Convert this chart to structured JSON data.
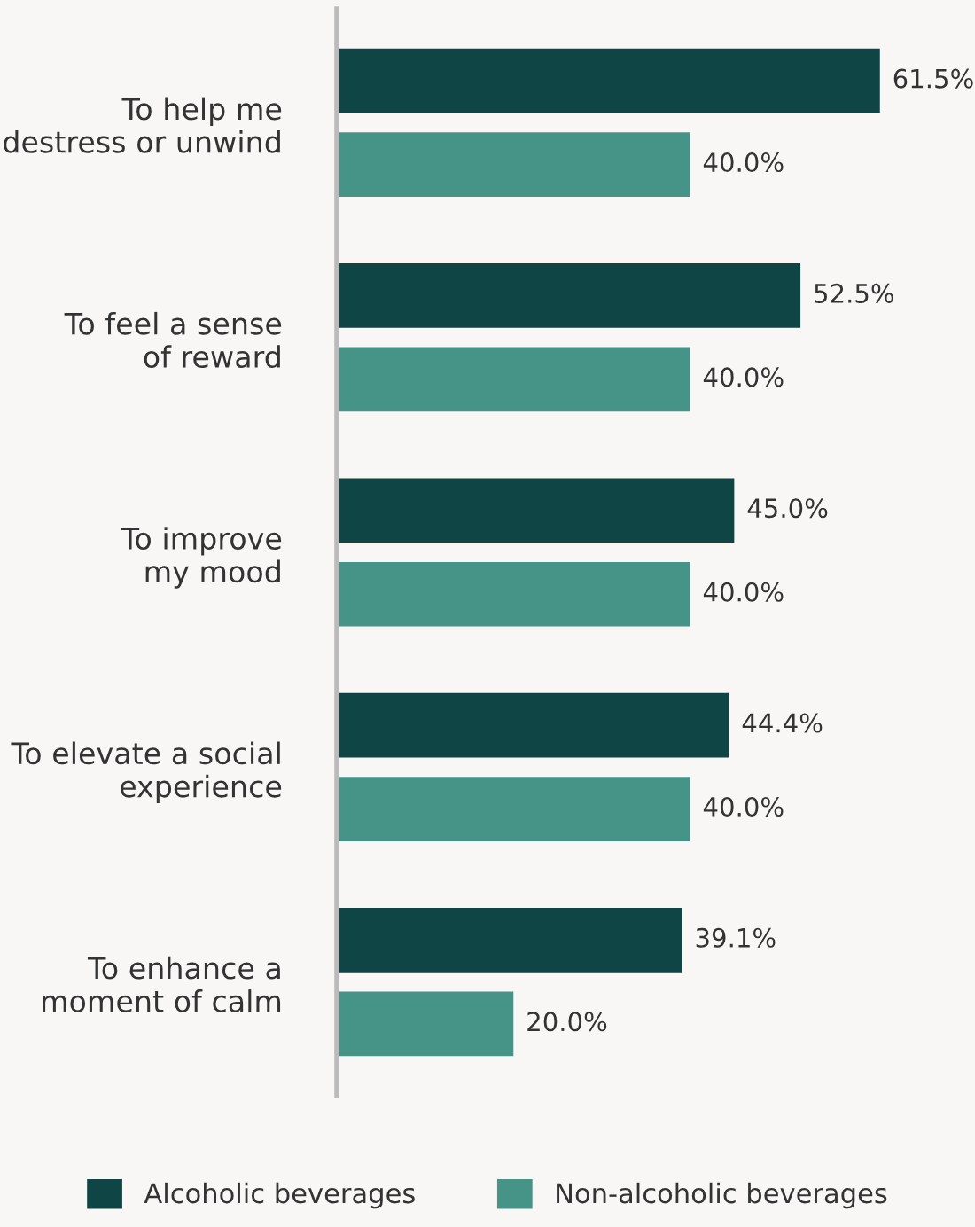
{
  "chart_data": {
    "type": "bar",
    "orientation": "horizontal",
    "legend": "bottom",
    "categories": [
      "To help me\ndestress or unwind",
      "To feel a sense\nof reward",
      "To improve\nmy mood",
      "To elevate a social\nexperience",
      "To enhance a\nmoment of calm"
    ],
    "series": [
      {
        "name": "Alcoholic beverages",
        "color": "#0f4545",
        "values": [
          61.5,
          52.5,
          45.0,
          44.4,
          39.1
        ],
        "value_labels": [
          "61.5%",
          "52.5%",
          "45.0%",
          "44.4%",
          "39.1%"
        ]
      },
      {
        "name": "Non-alcoholic beverages",
        "color": "#469487",
        "values": [
          40.0,
          40.0,
          40.0,
          40.0,
          20.0
        ],
        "value_labels": [
          "40.0%",
          "40.0%",
          "40.0%",
          "40.0%",
          "20.0%"
        ]
      }
    ]
  }
}
